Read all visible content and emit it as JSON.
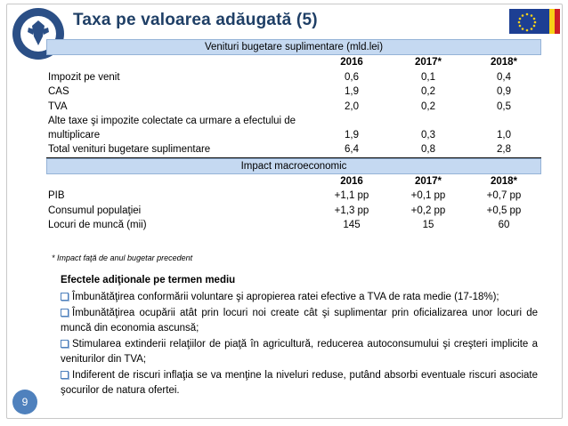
{
  "header": {
    "title": "Taxa pe valoarea adăugată (5)",
    "logo_text": "ROMANIA • MINISTERUL FINANTELOR PUBLICE",
    "colors": {
      "title": "#1f3f66",
      "band": "#c5d9f1",
      "badge": "#4f81bd"
    }
  },
  "table": {
    "section1_title": "Venituri bugetare suplimentare (mld.lei)",
    "section1_headers": [
      "",
      "2016",
      "2017*",
      "2018*"
    ],
    "section1_rows": [
      [
        "Impozit pe venit",
        "0,6",
        "0,1",
        "0,4"
      ],
      [
        "CAS",
        "1,9",
        "0,2",
        "0,9"
      ],
      [
        "TVA",
        "2,0",
        "0,2",
        "0,5"
      ],
      [
        "Alte taxe şi impozite colectate ca urmare a efectului de multiplicare",
        "1,9",
        "0,3",
        "1,0"
      ],
      [
        "Total venituri bugetare suplimentare",
        "6,4",
        "0,8",
        "2,8"
      ]
    ],
    "section2_title": "Impact macroeconomic",
    "section2_headers": [
      "",
      "2016",
      "2017*",
      "2018*"
    ],
    "section2_rows": [
      [
        "PIB",
        "+1,1 pp",
        "+0,1 pp",
        "+0,7 pp"
      ],
      [
        "Consumul populaţiei",
        "+1,3 pp",
        "+0,2 pp",
        "+0,5 pp"
      ],
      [
        "Locuri de muncă (mii)",
        "145",
        "15",
        "60"
      ]
    ]
  },
  "footnote": "* Impact faţă de anul bugetar precedent",
  "effects": {
    "title": "Efectele adiţionale pe termen mediu",
    "items": [
      "Îmbunătăţirea conformării voluntare şi apropierea ratei efective a TVA de rata medie (17-18%);",
      "Îmbunătăţirea ocupării atât prin locuri noi create cât şi suplimentar prin oficializarea unor locuri de muncă din economia ascunsă;",
      "Stimularea extinderii relaţiilor de piaţă în agricultură, reducerea autoconsumului şi creşteri implicite a veniturilor din TVA;",
      "Indiferent de riscuri inflaţia se va menţine la niveluri reduse, putând absorbi eventuale riscuri asociate şocurilor de natura ofertei."
    ]
  },
  "page_number": "9"
}
